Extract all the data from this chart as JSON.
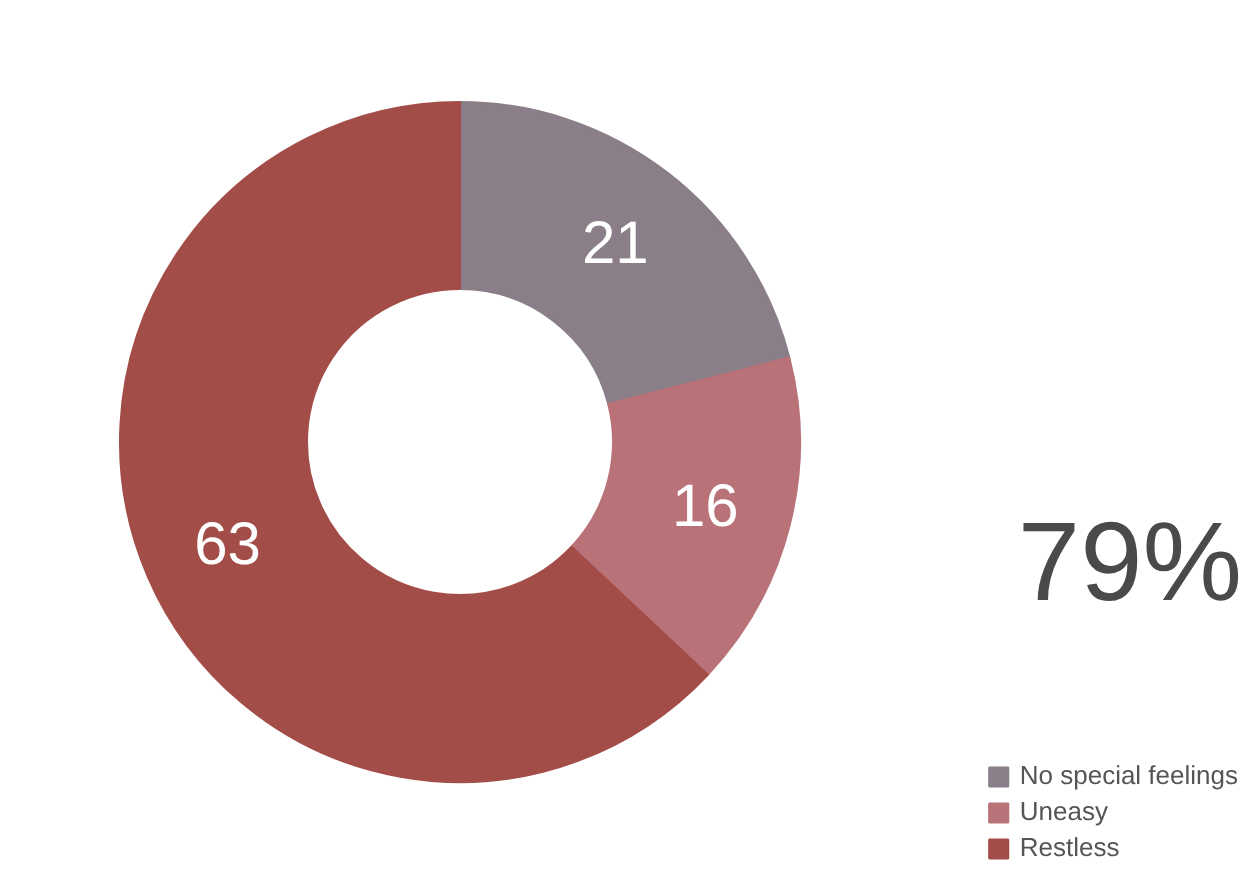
{
  "chart_data": {
    "type": "donut",
    "categories": [
      "No special feelings",
      "Uneasy",
      "Restless"
    ],
    "values": [
      21,
      16,
      63
    ],
    "colors": [
      "#8a7f88",
      "#b87278",
      "#a34d48"
    ],
    "data_labels": true,
    "legend": "bottom right",
    "annotations": [
      "79%"
    ]
  }
}
